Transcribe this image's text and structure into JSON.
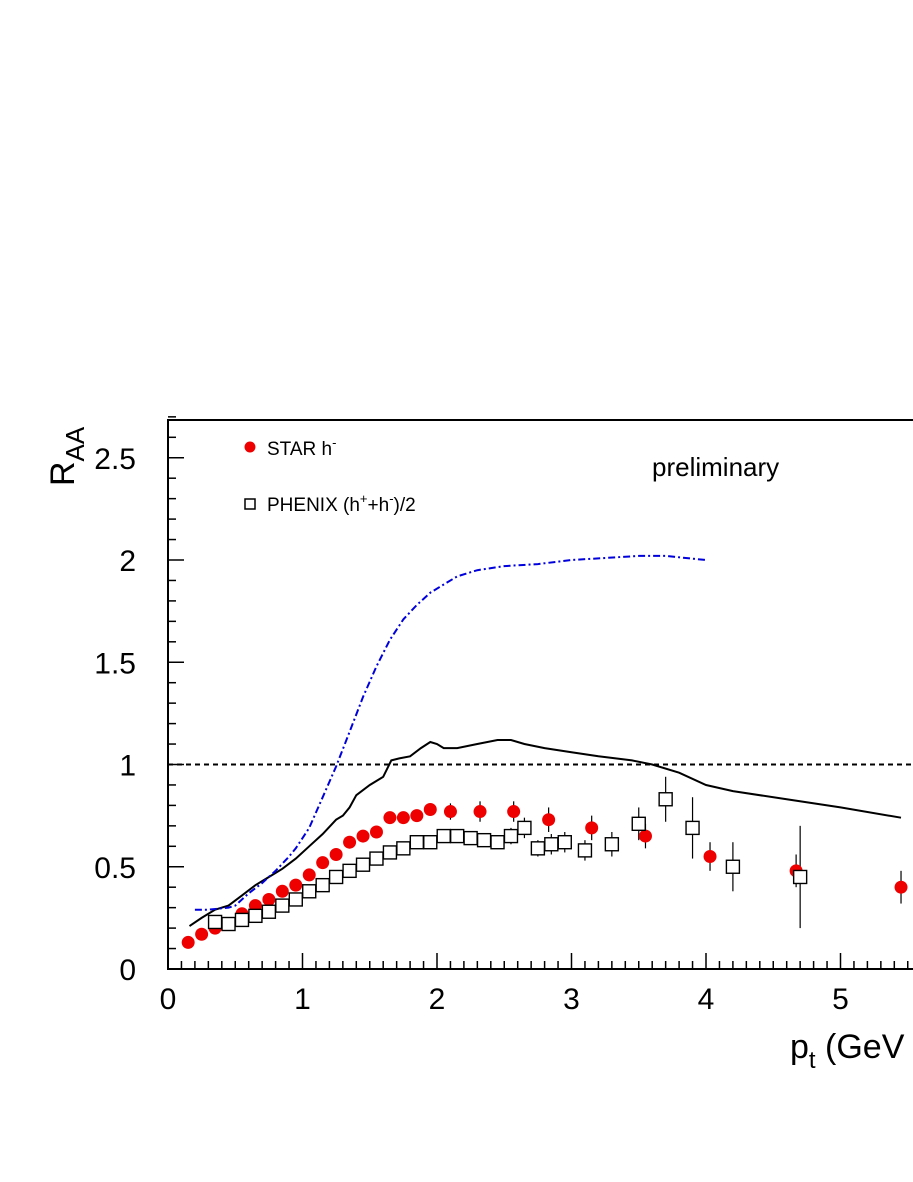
{
  "chart_data": {
    "type": "scatter",
    "xlim": [
      0,
      5.5
    ],
    "ylim": [
      0,
      2.7
    ],
    "x_ticks": [
      "0",
      "1",
      "2",
      "3",
      "4",
      "5"
    ],
    "y_ticks": [
      "0",
      "0.5",
      "1",
      "1.5",
      "2",
      "2.5"
    ],
    "xlabel": {
      "main": "p",
      "sub": "t",
      "rest": " (GeV"
    },
    "ylabel": {
      "main": "R",
      "sub": "AA"
    },
    "annotation": "preliminary",
    "reference_line": {
      "y": 1,
      "style": "dashed",
      "color": "#000000"
    },
    "legend": {
      "placement": "top-left",
      "items": [
        {
          "marker": "filled-circle",
          "color": "#ee0000",
          "label_main": "STAR h",
          "label_sup": "-",
          "label_tail": ""
        },
        {
          "marker": "open-square",
          "color": "#000000",
          "label_main": "PHENIX (h",
          "label_sup": "+",
          "label_mid": "+h",
          "label_sup2": "-",
          "label_tail": ")/2"
        }
      ]
    },
    "series": [
      {
        "marker": "filled-circle",
        "color": "#ee0000",
        "points": [
          {
            "x": 0.15,
            "y": 0.13,
            "err": 0.0
          },
          {
            "x": 0.25,
            "y": 0.17,
            "err": 0.0
          },
          {
            "x": 0.35,
            "y": 0.2,
            "err": 0.0
          },
          {
            "x": 0.45,
            "y": 0.22,
            "err": 0.0
          },
          {
            "x": 0.55,
            "y": 0.27,
            "err": 0.0
          },
          {
            "x": 0.65,
            "y": 0.31,
            "err": 0.0
          },
          {
            "x": 0.75,
            "y": 0.34,
            "err": 0.0
          },
          {
            "x": 0.85,
            "y": 0.38,
            "err": 0.0
          },
          {
            "x": 0.95,
            "y": 0.41,
            "err": 0.0
          },
          {
            "x": 1.05,
            "y": 0.46,
            "err": 0.0
          },
          {
            "x": 1.15,
            "y": 0.52,
            "err": 0.0
          },
          {
            "x": 1.25,
            "y": 0.56,
            "err": 0.0
          },
          {
            "x": 1.35,
            "y": 0.62,
            "err": 0.0
          },
          {
            "x": 1.45,
            "y": 0.65,
            "err": 0.0
          },
          {
            "x": 1.55,
            "y": 0.67,
            "err": 0.0
          },
          {
            "x": 1.65,
            "y": 0.74,
            "err": 0.0
          },
          {
            "x": 1.75,
            "y": 0.74,
            "err": 0.02
          },
          {
            "x": 1.85,
            "y": 0.75,
            "err": 0.03
          },
          {
            "x": 1.95,
            "y": 0.78,
            "err": 0.03
          },
          {
            "x": 2.1,
            "y": 0.77,
            "err": 0.04
          },
          {
            "x": 2.32,
            "y": 0.77,
            "err": 0.05
          },
          {
            "x": 2.57,
            "y": 0.77,
            "err": 0.05
          },
          {
            "x": 2.83,
            "y": 0.73,
            "err": 0.06
          },
          {
            "x": 3.15,
            "y": 0.69,
            "err": 0.06
          },
          {
            "x": 3.55,
            "y": 0.65,
            "err": 0.06
          },
          {
            "x": 4.03,
            "y": 0.55,
            "err": 0.07
          },
          {
            "x": 4.67,
            "y": 0.48,
            "err": 0.08
          },
          {
            "x": 5.45,
            "y": 0.4,
            "err": 0.08
          }
        ]
      },
      {
        "marker": "open-square",
        "color": "#000000",
        "points": [
          {
            "x": 0.35,
            "y": 0.23,
            "err": 0.0
          },
          {
            "x": 0.45,
            "y": 0.22,
            "err": 0.0
          },
          {
            "x": 0.55,
            "y": 0.24,
            "err": 0.0
          },
          {
            "x": 0.65,
            "y": 0.26,
            "err": 0.0
          },
          {
            "x": 0.75,
            "y": 0.28,
            "err": 0.0
          },
          {
            "x": 0.85,
            "y": 0.31,
            "err": 0.0
          },
          {
            "x": 0.95,
            "y": 0.34,
            "err": 0.0
          },
          {
            "x": 1.05,
            "y": 0.38,
            "err": 0.0
          },
          {
            "x": 1.15,
            "y": 0.41,
            "err": 0.0
          },
          {
            "x": 1.25,
            "y": 0.45,
            "err": 0.0
          },
          {
            "x": 1.35,
            "y": 0.48,
            "err": 0.0
          },
          {
            "x": 1.45,
            "y": 0.51,
            "err": 0.0
          },
          {
            "x": 1.55,
            "y": 0.54,
            "err": 0.0
          },
          {
            "x": 1.65,
            "y": 0.57,
            "err": 0.0
          },
          {
            "x": 1.75,
            "y": 0.59,
            "err": 0.0
          },
          {
            "x": 1.85,
            "y": 0.62,
            "err": 0.02
          },
          {
            "x": 1.95,
            "y": 0.62,
            "err": 0.02
          },
          {
            "x": 2.05,
            "y": 0.65,
            "err": 0.02
          },
          {
            "x": 2.15,
            "y": 0.65,
            "err": 0.02
          },
          {
            "x": 2.25,
            "y": 0.64,
            "err": 0.02
          },
          {
            "x": 2.35,
            "y": 0.63,
            "err": 0.03
          },
          {
            "x": 2.45,
            "y": 0.62,
            "err": 0.03
          },
          {
            "x": 2.55,
            "y": 0.65,
            "err": 0.04
          },
          {
            "x": 2.65,
            "y": 0.69,
            "err": 0.05
          },
          {
            "x": 2.75,
            "y": 0.59,
            "err": 0.04
          },
          {
            "x": 2.85,
            "y": 0.61,
            "err": 0.05
          },
          {
            "x": 2.95,
            "y": 0.62,
            "err": 0.05
          },
          {
            "x": 3.1,
            "y": 0.58,
            "err": 0.05
          },
          {
            "x": 3.3,
            "y": 0.61,
            "err": 0.06
          },
          {
            "x": 3.5,
            "y": 0.71,
            "err": 0.08
          },
          {
            "x": 3.7,
            "y": 0.83,
            "err": 0.11
          },
          {
            "x": 3.9,
            "y": 0.69,
            "err": 0.15
          },
          {
            "x": 4.2,
            "y": 0.5,
            "err": 0.12
          },
          {
            "x": 4.7,
            "y": 0.45,
            "err": 0.25
          }
        ]
      }
    ],
    "curves": [
      {
        "style": "solid",
        "color": "#000000",
        "points": [
          [
            0.16,
            0.21
          ],
          [
            0.25,
            0.25
          ],
          [
            0.35,
            0.29
          ],
          [
            0.45,
            0.31
          ],
          [
            0.55,
            0.36
          ],
          [
            0.65,
            0.41
          ],
          [
            0.75,
            0.45
          ],
          [
            0.85,
            0.49
          ],
          [
            0.95,
            0.54
          ],
          [
            1.05,
            0.6
          ],
          [
            1.15,
            0.66
          ],
          [
            1.25,
            0.73
          ],
          [
            1.3,
            0.75
          ],
          [
            1.35,
            0.79
          ],
          [
            1.4,
            0.85
          ],
          [
            1.5,
            0.9
          ],
          [
            1.6,
            0.94
          ],
          [
            1.66,
            1.02
          ],
          [
            1.72,
            1.03
          ],
          [
            1.8,
            1.04
          ],
          [
            1.88,
            1.08
          ],
          [
            1.95,
            1.11
          ],
          [
            2.0,
            1.1
          ],
          [
            2.05,
            1.08
          ],
          [
            2.15,
            1.08
          ],
          [
            2.3,
            1.1
          ],
          [
            2.45,
            1.12
          ],
          [
            2.55,
            1.12
          ],
          [
            2.65,
            1.1
          ],
          [
            2.8,
            1.08
          ],
          [
            3.0,
            1.06
          ],
          [
            3.2,
            1.04
          ],
          [
            3.45,
            1.02
          ],
          [
            3.6,
            1.0
          ],
          [
            3.8,
            0.96
          ],
          [
            4.0,
            0.9
          ],
          [
            4.2,
            0.87
          ],
          [
            4.6,
            0.83
          ],
          [
            5.0,
            0.79
          ],
          [
            5.45,
            0.74
          ]
        ]
      },
      {
        "style": "dash-dot",
        "color": "#0000dd",
        "points": [
          [
            0.2,
            0.29
          ],
          [
            0.3,
            0.29
          ],
          [
            0.45,
            0.3
          ],
          [
            0.5,
            0.31
          ],
          [
            0.6,
            0.37
          ],
          [
            0.7,
            0.42
          ],
          [
            0.8,
            0.48
          ],
          [
            0.9,
            0.55
          ],
          [
            0.95,
            0.59
          ],
          [
            1.05,
            0.69
          ],
          [
            1.15,
            0.84
          ],
          [
            1.25,
            0.99
          ],
          [
            1.35,
            1.16
          ],
          [
            1.45,
            1.33
          ],
          [
            1.55,
            1.48
          ],
          [
            1.65,
            1.61
          ],
          [
            1.75,
            1.71
          ],
          [
            1.85,
            1.78
          ],
          [
            1.95,
            1.84
          ],
          [
            2.05,
            1.88
          ],
          [
            2.15,
            1.92
          ],
          [
            2.3,
            1.95
          ],
          [
            2.5,
            1.97
          ],
          [
            2.75,
            1.98
          ],
          [
            3.0,
            2.0
          ],
          [
            3.25,
            2.01
          ],
          [
            3.5,
            2.02
          ],
          [
            3.7,
            2.02
          ],
          [
            3.85,
            2.01
          ],
          [
            4.0,
            2.0
          ]
        ]
      }
    ]
  }
}
